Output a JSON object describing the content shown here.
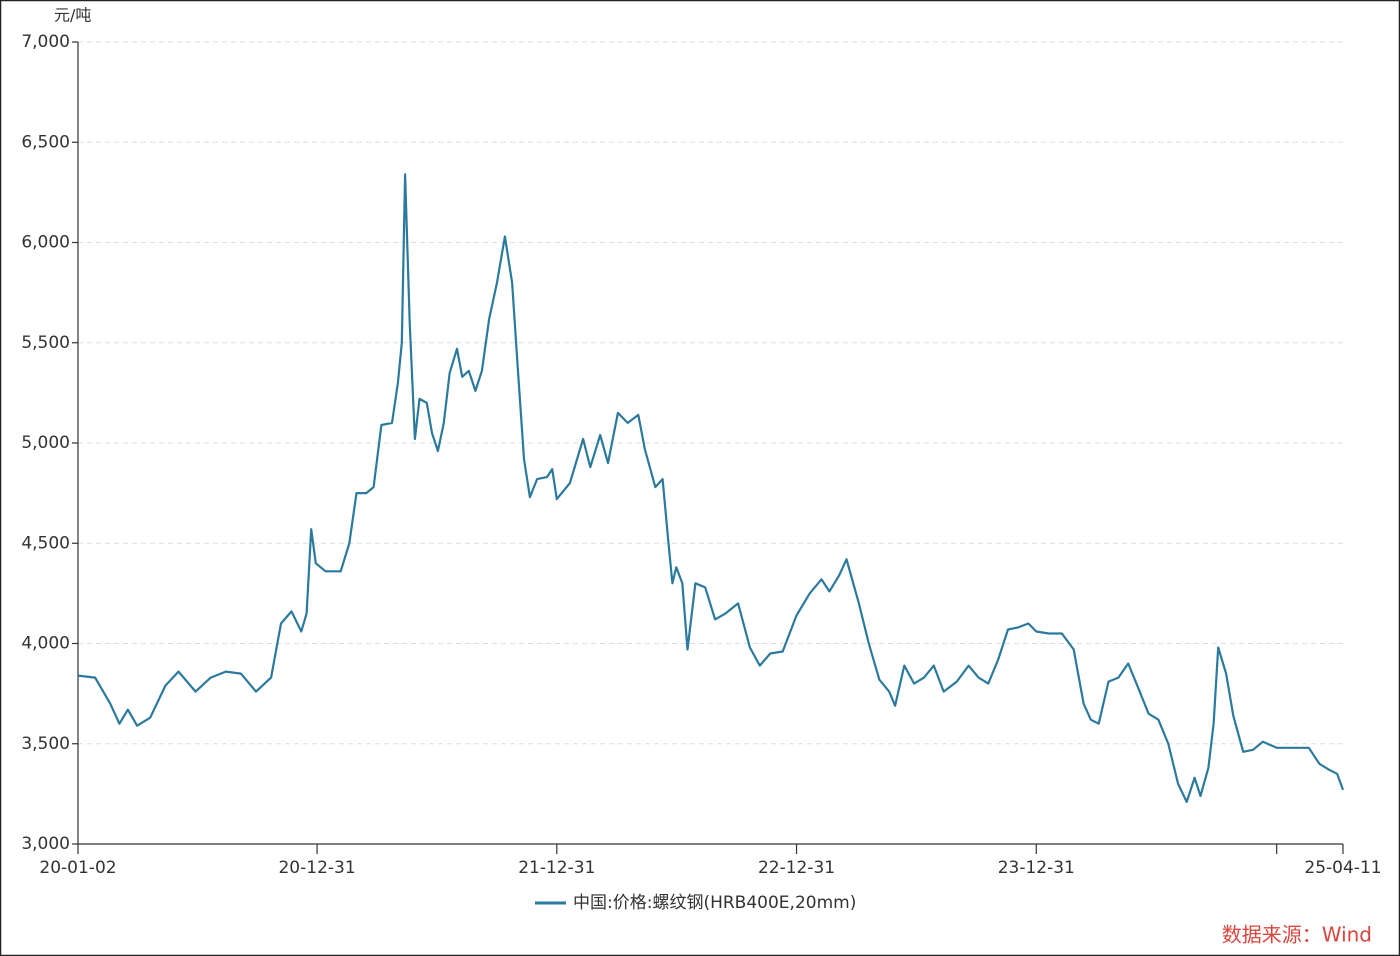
{
  "chart_data": {
    "type": "line",
    "y_unit": "元/吨",
    "source": "数据来源：Wind",
    "xlim": [
      "2020-01-02",
      "2025-04-11"
    ],
    "xticks": [
      {
        "value": "2020-01-02",
        "label": "20-01-02"
      },
      {
        "value": "2020-12-31",
        "label": "20-12-31"
      },
      {
        "value": "2021-12-31",
        "label": "21-12-31"
      },
      {
        "value": "2022-12-31",
        "label": "22-12-31"
      },
      {
        "value": "2023-12-31",
        "label": "23-12-31"
      },
      {
        "value": "2025-04-11",
        "label": "25-04-11"
      }
    ],
    "xminor_ticks": [
      "2024-12-31"
    ],
    "ylim": [
      3000,
      7000
    ],
    "yticks": [
      {
        "value": 3000,
        "label": "3,000"
      },
      {
        "value": 3500,
        "label": "3,500"
      },
      {
        "value": 4000,
        "label": "4,000"
      },
      {
        "value": 4500,
        "label": "4,500"
      },
      {
        "value": 5000,
        "label": "5,000"
      },
      {
        "value": 5500,
        "label": "5,500"
      },
      {
        "value": 6000,
        "label": "6,000"
      },
      {
        "value": 6500,
        "label": "6,500"
      },
      {
        "value": 7000,
        "label": "7,000"
      }
    ],
    "grid": true,
    "legend": "bottom",
    "x": [
      "2020-01-02",
      "2020-01-28",
      "2020-02-20",
      "2020-03-05",
      "2020-03-18",
      "2020-04-01",
      "2020-04-21",
      "2020-05-14",
      "2020-06-03",
      "2020-06-29",
      "2020-07-22",
      "2020-08-14",
      "2020-09-06",
      "2020-09-29",
      "2020-10-22",
      "2020-11-06",
      "2020-11-22",
      "2020-12-07",
      "2020-12-15",
      "2020-12-22",
      "2020-12-29",
      "2021-01-13",
      "2021-02-05",
      "2021-02-18",
      "2021-03-01",
      "2021-03-16",
      "2021-03-27",
      "2021-04-08",
      "2021-04-24",
      "2021-05-03",
      "2021-05-09",
      "2021-05-14",
      "2021-05-21",
      "2021-05-29",
      "2021-06-05",
      "2021-06-16",
      "2021-06-24",
      "2021-07-03",
      "2021-07-12",
      "2021-07-21",
      "2021-08-01",
      "2021-08-09",
      "2021-08-19",
      "2021-08-29",
      "2021-09-08",
      "2021-09-19",
      "2021-10-01",
      "2021-10-13",
      "2021-10-24",
      "2021-11-02",
      "2021-11-11",
      "2021-11-20",
      "2021-12-01",
      "2021-12-16",
      "2021-12-24",
      "2021-12-31",
      "2022-01-20",
      "2022-02-09",
      "2022-02-20",
      "2022-03-07",
      "2022-03-19",
      "2022-04-03",
      "2022-04-18",
      "2022-05-04",
      "2022-05-14",
      "2022-05-30",
      "2022-06-10",
      "2022-06-19",
      "2022-06-25",
      "2022-07-01",
      "2022-07-10",
      "2022-07-18",
      "2022-07-30",
      "2022-08-14",
      "2022-08-29",
      "2022-09-14",
      "2022-10-03",
      "2022-10-21",
      "2022-11-05",
      "2022-11-21",
      "2022-12-10",
      "2022-12-31",
      "2023-01-20",
      "2023-02-07",
      "2023-02-19",
      "2023-03-06",
      "2023-03-17",
      "2023-04-05",
      "2023-04-20",
      "2023-05-06",
      "2023-05-21",
      "2023-05-30",
      "2023-06-13",
      "2023-06-28",
      "2023-07-13",
      "2023-07-28",
      "2023-08-12",
      "2023-09-01",
      "2023-09-19",
      "2023-10-04",
      "2023-10-19",
      "2023-11-03",
      "2023-11-18",
      "2023-12-03",
      "2023-12-19",
      "2023-12-31",
      "2024-01-19",
      "2024-02-08",
      "2024-02-26",
      "2024-03-12",
      "2024-03-23",
      "2024-04-04",
      "2024-04-19",
      "2024-05-04",
      "2024-05-19",
      "2024-06-03",
      "2024-06-19",
      "2024-07-04",
      "2024-07-19",
      "2024-08-03",
      "2024-08-16",
      "2024-08-28",
      "2024-09-06",
      "2024-09-18",
      "2024-09-26",
      "2024-10-03",
      "2024-10-15",
      "2024-10-26",
      "2024-11-10",
      "2024-11-25",
      "2024-12-10",
      "2024-12-31",
      "2025-01-19",
      "2025-02-03",
      "2025-02-18",
      "2025-03-06",
      "2025-03-21",
      "2025-04-02",
      "2025-04-11"
    ],
    "series": [
      {
        "name": "中国:价格:螺纹钢(HRB400E,20mm)",
        "color": "#2b7a9e",
        "values": [
          3840,
          3830,
          3700,
          3600,
          3670,
          3590,
          3630,
          3790,
          3860,
          3760,
          3830,
          3860,
          3850,
          3760,
          3830,
          4100,
          4160,
          4060,
          4150,
          4570,
          4400,
          4360,
          4360,
          4500,
          4750,
          4750,
          4780,
          5090,
          5100,
          5300,
          5500,
          6340,
          5600,
          5020,
          5220,
          5200,
          5050,
          4960,
          5100,
          5350,
          5470,
          5330,
          5360,
          5260,
          5360,
          5620,
          5800,
          6030,
          5800,
          5350,
          4920,
          4730,
          4820,
          4830,
          4870,
          4720,
          4800,
          5020,
          4880,
          5040,
          4900,
          5150,
          5100,
          5140,
          4970,
          4780,
          4820,
          4500,
          4300,
          4380,
          4300,
          3970,
          4300,
          4280,
          4120,
          4150,
          4200,
          3980,
          3890,
          3950,
          3960,
          4140,
          4250,
          4320,
          4260,
          4340,
          4420,
          4200,
          4000,
          3820,
          3760,
          3690,
          3890,
          3800,
          3830,
          3890,
          3760,
          3810,
          3890,
          3830,
          3800,
          3920,
          4070,
          4080,
          4100,
          4060,
          4050,
          4050,
          3970,
          3700,
          3620,
          3600,
          3810,
          3830,
          3900,
          3780,
          3650,
          3620,
          3500,
          3300,
          3210,
          3330,
          3240,
          3380,
          3600,
          3980,
          3850,
          3640,
          3460,
          3470,
          3510,
          3480,
          3480,
          3480,
          3480,
          3400,
          3370,
          3350,
          3270
        ]
      }
    ]
  }
}
